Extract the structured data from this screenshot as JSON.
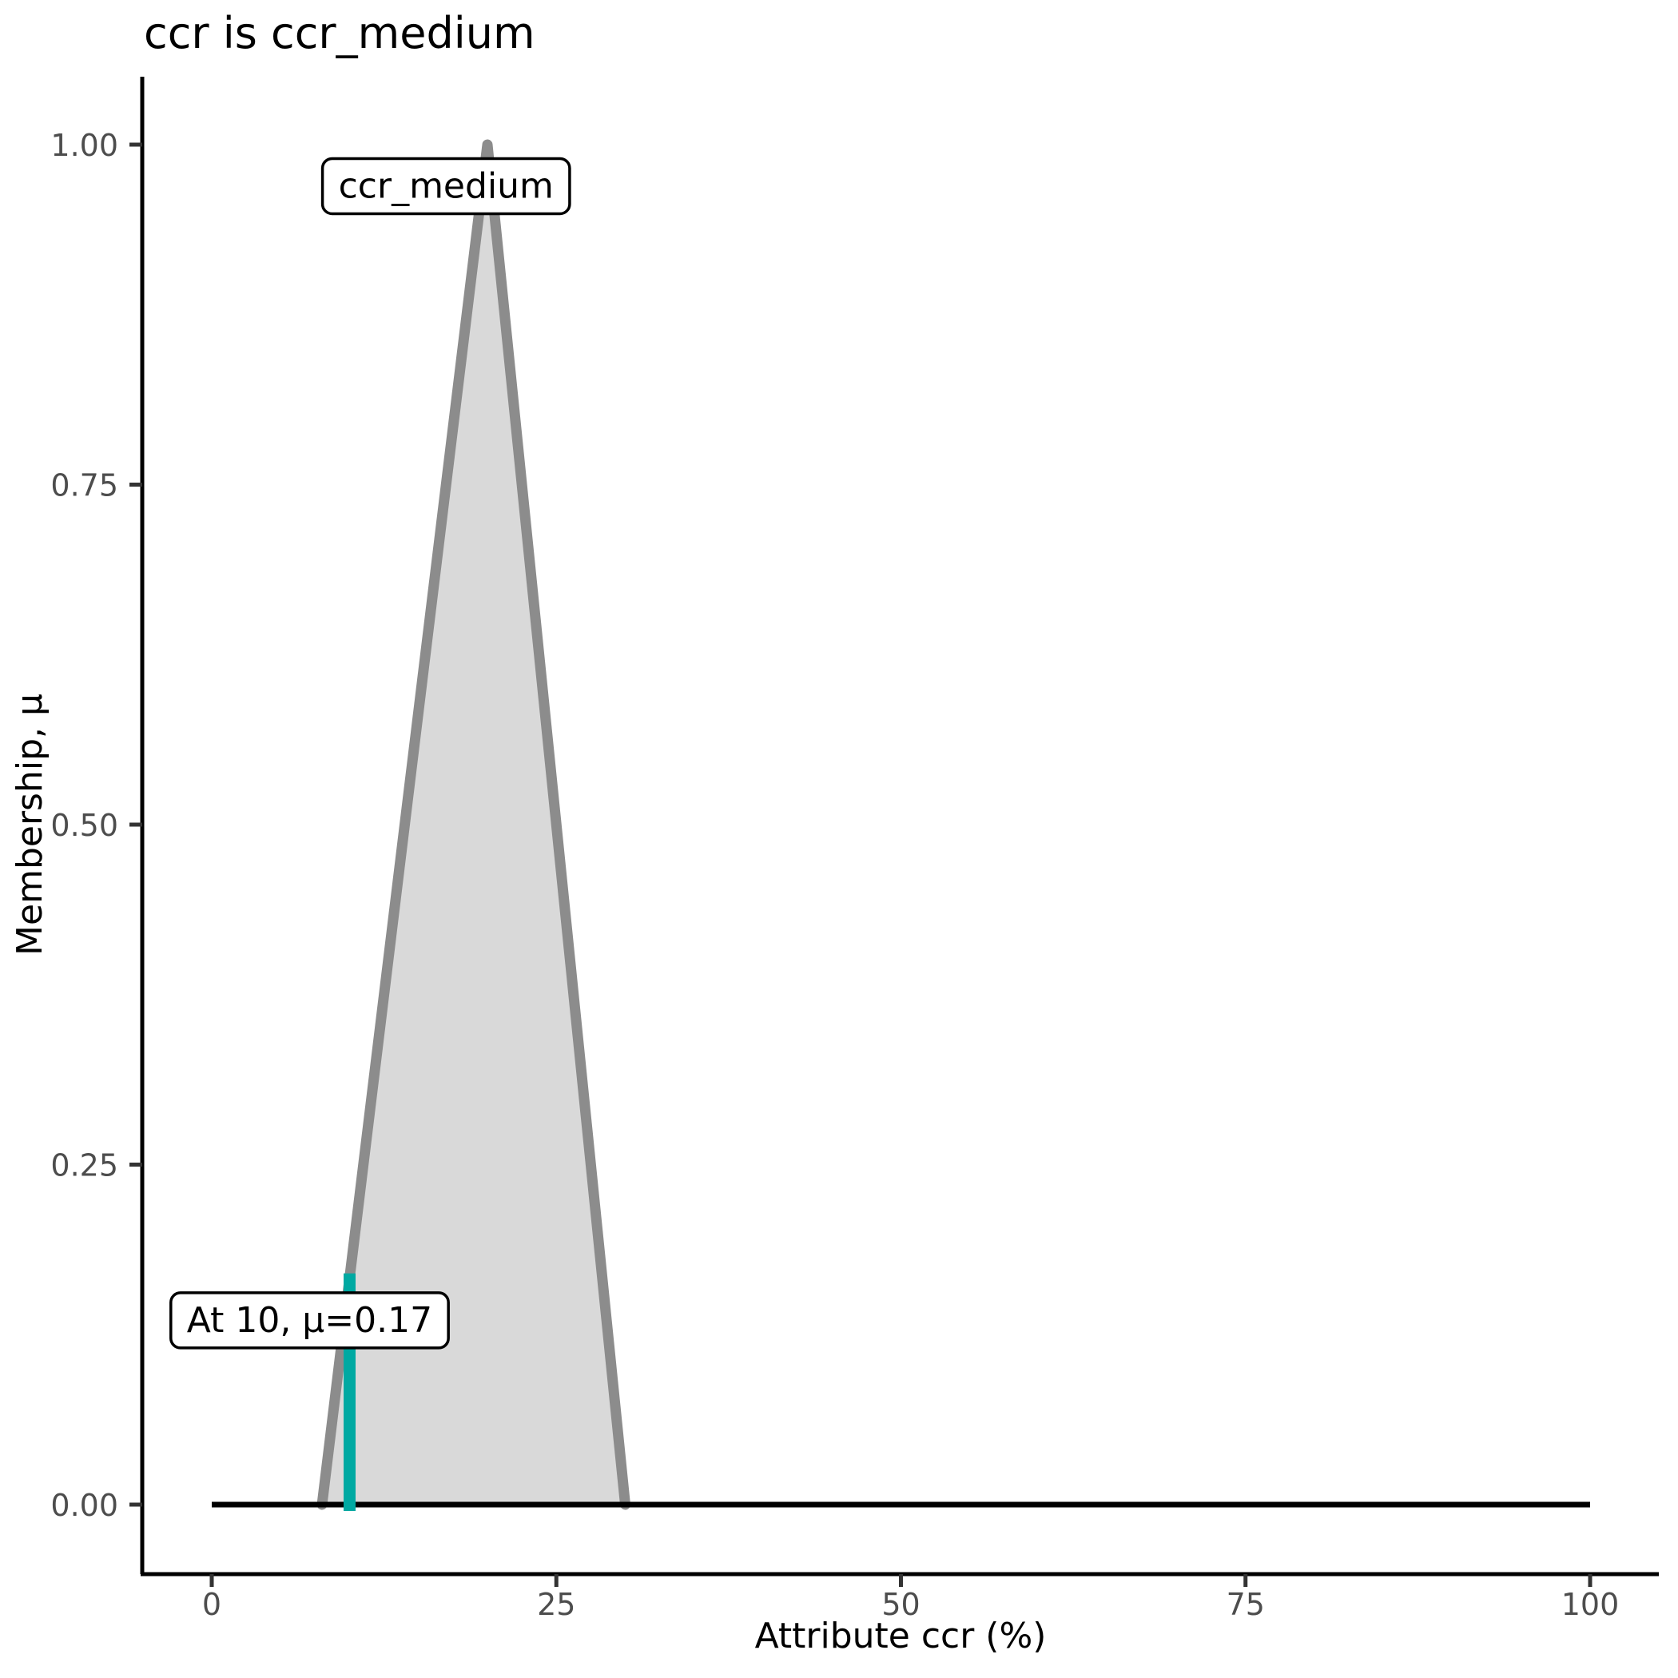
{
  "title": "ccr is ccr_medium",
  "colors": {
    "membership_line": "#8c8c8c",
    "membership_fill": "#d9d9d9",
    "baseline": "#000000",
    "query_line": "#00a9a2",
    "axis_line": "#000000",
    "tick_mark": "#333333",
    "tick_label": "#4d4d4d",
    "axis_title": "#000000",
    "title": "#000000",
    "label_box_bg": "#ffffff",
    "label_box_border": "#000000"
  },
  "chart_data": {
    "type": "area",
    "title": "ccr is ccr_medium",
    "xlabel": "Attribute ccr (%)",
    "ylabel": "Membership, μ",
    "xlim": [
      0,
      100
    ],
    "ylim": [
      0,
      1
    ],
    "grid": false,
    "legend_position": "none",
    "x_ticks": [
      0,
      25,
      50,
      75,
      100
    ],
    "x_tick_labels": [
      "0",
      "25",
      "50",
      "75",
      "100"
    ],
    "y_ticks": [
      0,
      0.25,
      0.5,
      0.75,
      1
    ],
    "y_tick_labels": [
      "0.00",
      "0.25",
      "0.50",
      "0.75",
      "1.00"
    ],
    "membership_function": {
      "name": "ccr_medium",
      "shape": "triangle",
      "points": [
        [
          8,
          0
        ],
        [
          20,
          1
        ],
        [
          30,
          0
        ]
      ]
    },
    "baseline_segment": {
      "points": [
        [
          0,
          0
        ],
        [
          100,
          0
        ]
      ]
    },
    "query_marker": {
      "x": 10,
      "mu": 0.17
    },
    "annotations": [
      {
        "id": "set-label",
        "text": "ccr_medium",
        "x": 17,
        "mu": 0.97
      },
      {
        "id": "query-label",
        "text": "At 10, μ=0.17",
        "x": 7.1,
        "mu": 0.136
      }
    ]
  }
}
